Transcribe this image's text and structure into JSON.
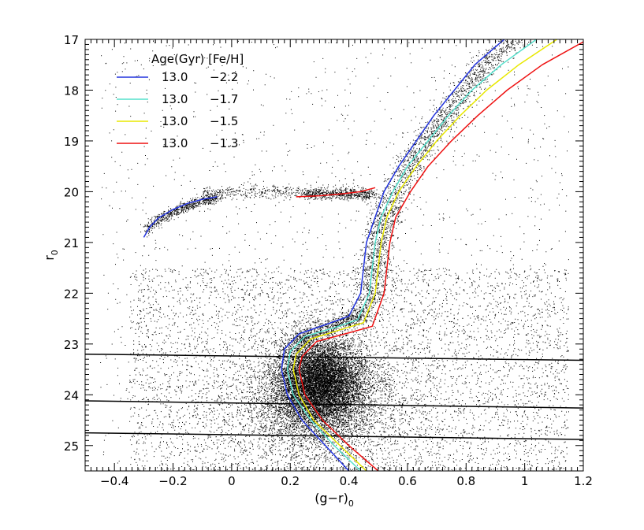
{
  "chart_data": {
    "type": "scatter",
    "title": "",
    "xlabel_main": "(g−r)",
    "xlabel_sub": "0",
    "ylabel_main": "r",
    "ylabel_sub": "0",
    "xlim": [
      -0.5,
      1.2
    ],
    "ylim": [
      25.5,
      17
    ],
    "y_inverted": true,
    "x_ticks": [
      -0.4,
      -0.2,
      0,
      0.2,
      0.4,
      0.6,
      0.8,
      1,
      1.2
    ],
    "x_tick_labels": [
      "−0.4",
      "−0.2",
      "0",
      "0.2",
      "0.4",
      "0.6",
      "0.8",
      "1",
      "1.2"
    ],
    "y_ticks": [
      17,
      18,
      19,
      20,
      21,
      22,
      23,
      24,
      25
    ],
    "y_tick_labels": [
      "17",
      "18",
      "19",
      "20",
      "21",
      "22",
      "23",
      "24",
      "25"
    ],
    "legend": {
      "placement": "top-left",
      "header": "Age(Gyr) [Fe/H]",
      "entries": [
        {
          "age": "13.0",
          "feh": "−2.2",
          "color": "#2233dd"
        },
        {
          "age": "13.0",
          "feh": "−1.7",
          "color": "#55e0cc"
        },
        {
          "age": "13.0",
          "feh": "−1.5",
          "color": "#e8e800"
        },
        {
          "age": "13.0",
          "feh": "−1.3",
          "color": "#ee1111"
        }
      ]
    },
    "point_color": "#000000",
    "isochrones": [
      {
        "feh": "−2.2",
        "color": "#2233dd",
        "points": [
          [
            0.4,
            25.5
          ],
          [
            0.32,
            25.0
          ],
          [
            0.24,
            24.5
          ],
          [
            0.19,
            24.0
          ],
          [
            0.17,
            23.5
          ],
          [
            0.18,
            23.1
          ],
          [
            0.23,
            22.8
          ],
          [
            0.33,
            22.6
          ],
          [
            0.4,
            22.45
          ],
          [
            0.44,
            22.0
          ],
          [
            0.45,
            21.5
          ],
          [
            0.46,
            21.0
          ],
          [
            0.49,
            20.5
          ],
          [
            0.52,
            20.0
          ],
          [
            0.57,
            19.5
          ],
          [
            0.63,
            19.0
          ],
          [
            0.69,
            18.5
          ],
          [
            0.76,
            18.0
          ],
          [
            0.83,
            17.5
          ],
          [
            0.93,
            17.0
          ]
        ]
      },
      {
        "feh": "−1.7",
        "color": "#55e0cc",
        "points": [
          [
            0.44,
            25.5
          ],
          [
            0.35,
            25.0
          ],
          [
            0.27,
            24.5
          ],
          [
            0.21,
            24.0
          ],
          [
            0.19,
            23.5
          ],
          [
            0.2,
            23.15
          ],
          [
            0.25,
            22.85
          ],
          [
            0.35,
            22.68
          ],
          [
            0.43,
            22.52
          ],
          [
            0.47,
            22.0
          ],
          [
            0.48,
            21.5
          ],
          [
            0.49,
            21.0
          ],
          [
            0.51,
            20.5
          ],
          [
            0.55,
            20.0
          ],
          [
            0.6,
            19.5
          ],
          [
            0.67,
            19.0
          ],
          [
            0.74,
            18.5
          ],
          [
            0.82,
            18.0
          ],
          [
            0.92,
            17.5
          ],
          [
            1.04,
            17.0
          ]
        ]
      },
      {
        "feh": "−1.5",
        "color": "#e8e800",
        "points": [
          [
            0.46,
            25.5
          ],
          [
            0.37,
            25.0
          ],
          [
            0.28,
            24.5
          ],
          [
            0.23,
            24.0
          ],
          [
            0.21,
            23.5
          ],
          [
            0.22,
            23.2
          ],
          [
            0.27,
            22.9
          ],
          [
            0.37,
            22.72
          ],
          [
            0.45,
            22.58
          ],
          [
            0.49,
            22.0
          ],
          [
            0.5,
            21.5
          ],
          [
            0.51,
            21.0
          ],
          [
            0.53,
            20.5
          ],
          [
            0.57,
            20.0
          ],
          [
            0.63,
            19.5
          ],
          [
            0.7,
            19.0
          ],
          [
            0.78,
            18.5
          ],
          [
            0.87,
            18.0
          ],
          [
            0.98,
            17.5
          ],
          [
            1.11,
            17.0
          ]
        ]
      },
      {
        "feh": "−1.3",
        "color": "#ee1111",
        "points": [
          [
            0.5,
            25.5
          ],
          [
            0.4,
            25.0
          ],
          [
            0.31,
            24.5
          ],
          [
            0.25,
            24.0
          ],
          [
            0.23,
            23.5
          ],
          [
            0.24,
            23.25
          ],
          [
            0.29,
            22.95
          ],
          [
            0.4,
            22.78
          ],
          [
            0.48,
            22.65
          ],
          [
            0.52,
            22.0
          ],
          [
            0.53,
            21.5
          ],
          [
            0.54,
            21.0
          ],
          [
            0.56,
            20.5
          ],
          [
            0.61,
            20.0
          ],
          [
            0.67,
            19.5
          ],
          [
            0.75,
            19.0
          ],
          [
            0.84,
            18.5
          ],
          [
            0.94,
            18.0
          ],
          [
            1.06,
            17.5
          ],
          [
            1.2,
            17.05
          ]
        ]
      }
    ],
    "horizontal_branches": [
      {
        "color": "#2233dd",
        "points": [
          [
            -0.3,
            20.9
          ],
          [
            -0.28,
            20.7
          ],
          [
            -0.25,
            20.52
          ],
          [
            -0.2,
            20.35
          ],
          [
            -0.15,
            20.23
          ],
          [
            -0.1,
            20.15
          ],
          [
            -0.05,
            20.1
          ]
        ]
      },
      {
        "color": "#ee1111",
        "points": [
          [
            0.22,
            20.1
          ],
          [
            0.3,
            20.08
          ],
          [
            0.38,
            20.04
          ],
          [
            0.44,
            20.0
          ],
          [
            0.49,
            19.92
          ]
        ]
      }
    ],
    "completeness_lines": [
      {
        "color": "#000000",
        "points": [
          [
            -0.5,
            23.2
          ],
          [
            1.2,
            23.32
          ]
        ]
      },
      {
        "color": "#000000",
        "points": [
          [
            -0.5,
            24.12
          ],
          [
            1.2,
            24.26
          ]
        ]
      },
      {
        "color": "#000000",
        "points": [
          [
            -0.5,
            24.75
          ],
          [
            1.2,
            24.88
          ]
        ]
      }
    ]
  }
}
